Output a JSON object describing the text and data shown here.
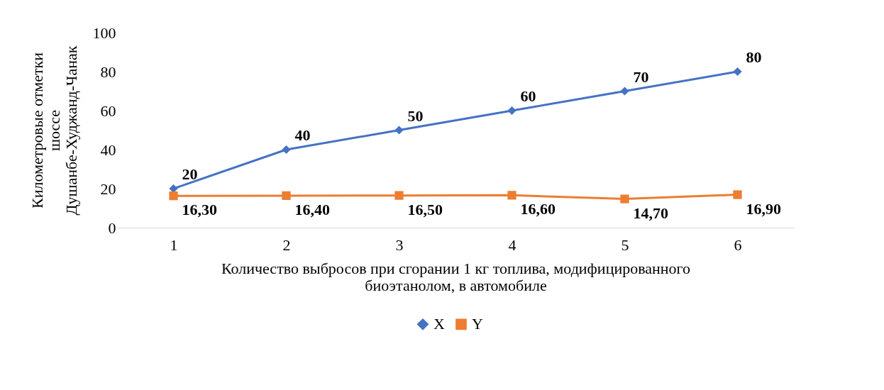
{
  "chart_data": {
    "type": "line",
    "xlabel": "Количество выбросов при сгорании 1 кг топлива, модифицированного биоэтанолом, в автомобиле",
    "ylabel": "Километровые отметки шоссе Душанбе-Худжанд-Чанак",
    "categories": [
      "1",
      "2",
      "3",
      "4",
      "5",
      "6"
    ],
    "series": [
      {
        "name": "X",
        "color": "#4472c4",
        "marker": "diamond",
        "values": [
          20,
          40,
          50,
          60,
          70,
          80
        ],
        "value_labels": [
          "20",
          "40",
          "50",
          "60",
          "70",
          "80"
        ]
      },
      {
        "name": "Y",
        "color": "#ed7d31",
        "marker": "square",
        "values": [
          16.3,
          16.4,
          16.5,
          16.6,
          14.7,
          16.9
        ],
        "value_labels": [
          "16,30",
          "16,40",
          "16,50",
          "16,60",
          "14,70",
          "16,90"
        ]
      }
    ],
    "ylim": [
      0,
      100
    ],
    "yticks": [
      0,
      20,
      40,
      60,
      80,
      100
    ],
    "legend": "bottom",
    "line_style": "solid"
  }
}
